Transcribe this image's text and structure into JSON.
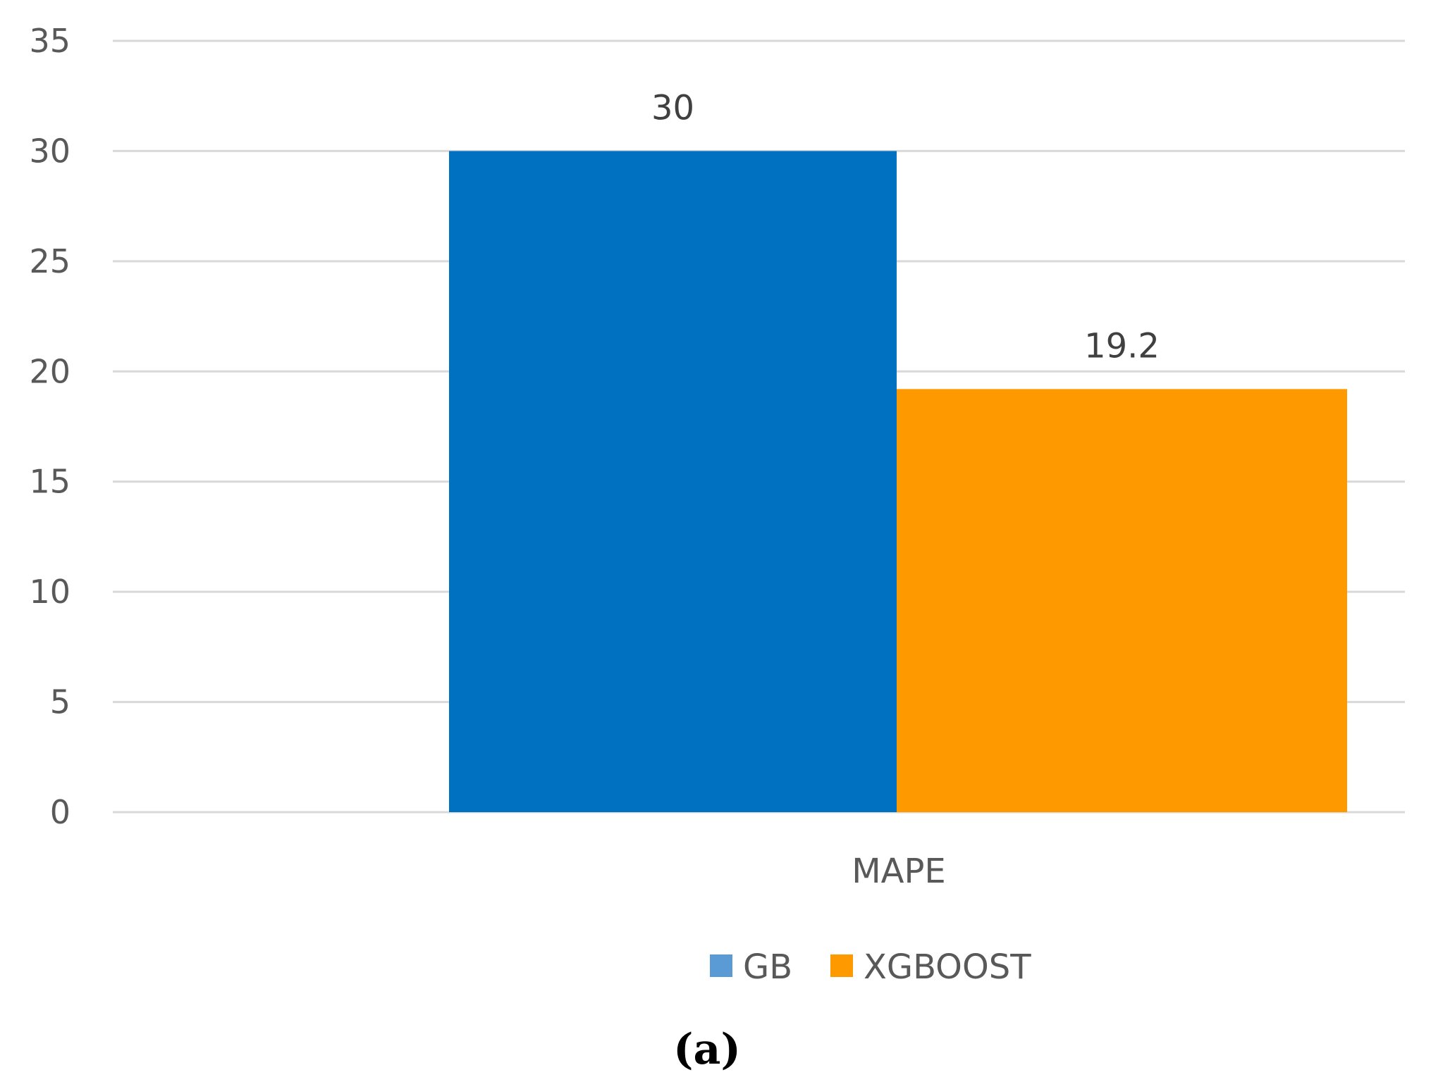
{
  "chart_data": {
    "type": "bar",
    "categories": [
      "MAPE"
    ],
    "series": [
      {
        "name": "GB",
        "values": [
          30
        ],
        "color": "#0070C0"
      },
      {
        "name": "XGBOOST",
        "values": [
          19.2
        ],
        "color": "#FF9900"
      }
    ],
    "data_labels": [
      "30",
      "19.2"
    ],
    "ylim": [
      0,
      35
    ],
    "yticks": [
      0,
      5,
      10,
      15,
      20,
      25,
      30,
      35
    ],
    "grid": true,
    "legend": "bottom-center",
    "legend_swatch_colors": [
      "#5B9BD5",
      "#FF9900"
    ],
    "caption": "(a)"
  }
}
